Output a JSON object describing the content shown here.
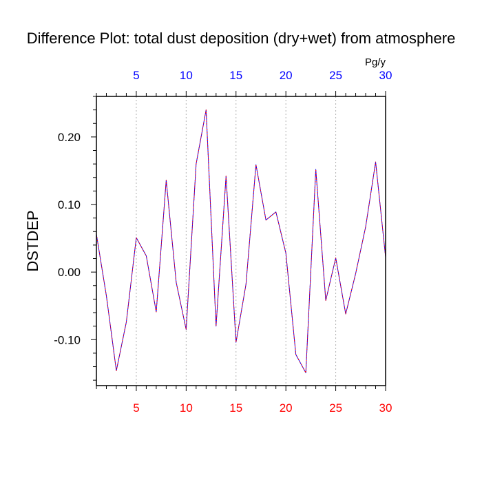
{
  "chart_data": {
    "type": "line",
    "title": "Difference Plot: total dust deposition (dry+wet) from atmosphere",
    "ylabel": "DSTDEP",
    "units": "Pg/y",
    "xlim": [
      1,
      30
    ],
    "ylim": [
      -0.168,
      0.26
    ],
    "x_ticks": [
      5,
      10,
      15,
      20,
      25,
      30
    ],
    "y_ticks": [
      0.2,
      0.1,
      0.0,
      -0.1
    ],
    "y_tick_labels": [
      "0.20",
      "0.10",
      "0.00",
      "-0.10"
    ],
    "grid": "vertical dashed at major x ticks",
    "colors": {
      "top_tick_labels": "#0000ff",
      "bottom_tick_labels": "#ff0000",
      "series_line": "#0000ff",
      "series_dash": "#ff0000",
      "grid": "#b0b0b0",
      "frame": "#000000"
    },
    "series": [
      {
        "x": [
          1,
          2,
          3,
          4,
          5,
          6,
          7,
          8,
          9,
          10,
          11,
          12,
          13,
          14,
          15,
          16,
          17,
          18,
          19,
          20,
          21,
          22,
          23,
          24,
          25,
          26,
          27,
          28,
          29,
          30
        ],
        "values": [
          0.056,
          -0.035,
          -0.146,
          -0.074,
          0.051,
          0.024,
          -0.059,
          0.136,
          -0.015,
          -0.085,
          0.16,
          0.24,
          -0.08,
          0.142,
          -0.104,
          -0.018,
          0.159,
          0.077,
          0.089,
          0.028,
          -0.122,
          -0.149,
          0.152,
          -0.042,
          0.021,
          -0.062,
          -0.002,
          0.067,
          0.163,
          0.022
        ]
      }
    ]
  }
}
